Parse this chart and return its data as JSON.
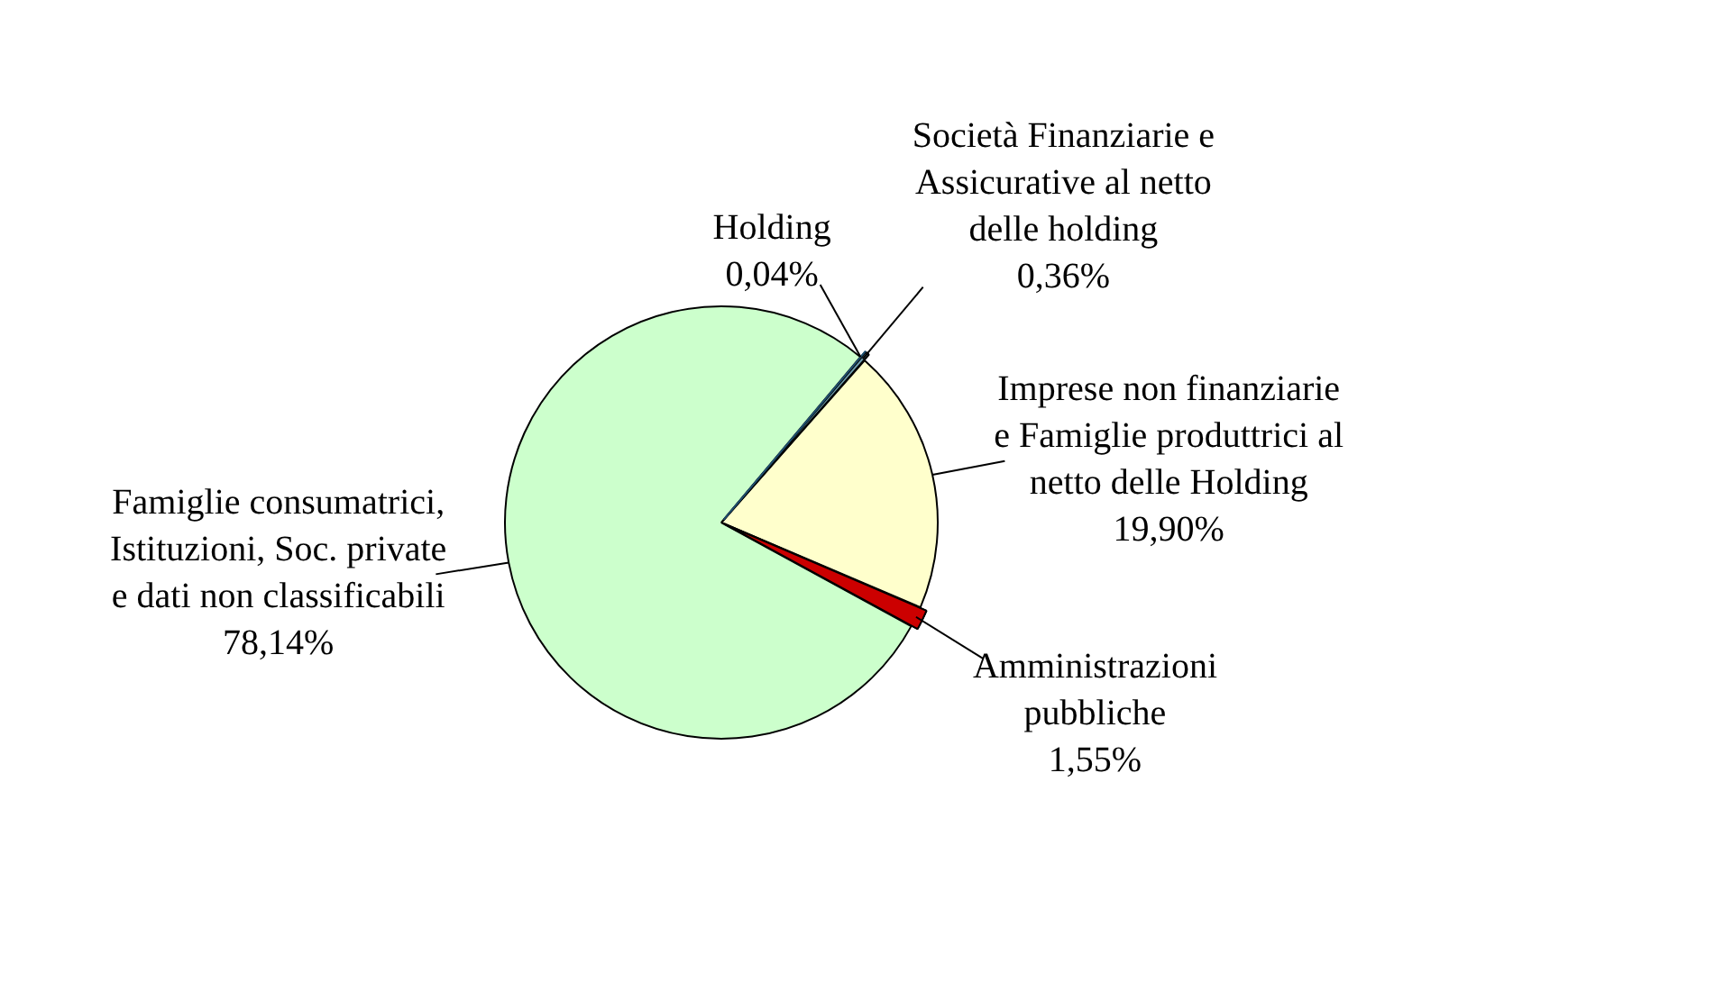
{
  "chart_data": {
    "type": "pie",
    "categories": [
      "Holding",
      "Società Finanziarie e Assicurative al netto delle holding",
      "Imprese non finanziarie e Famiglie produttrici al netto delle Holding",
      "Amministrazioni pubbliche",
      "Famiglie consumatrici, Istituzioni, Soc. private e dati non classificabili"
    ],
    "values": [
      0.04,
      0.36,
      19.9,
      1.55,
      78.14
    ],
    "colors": [
      "#1f4f6f",
      "#6f9fb0",
      "#ffffcc",
      "#cc0000",
      "#ccffcc"
    ],
    "value_labels": [
      "0,04%",
      "0,36%",
      "19,90%",
      "1,55%",
      "78,14%"
    ]
  }
}
